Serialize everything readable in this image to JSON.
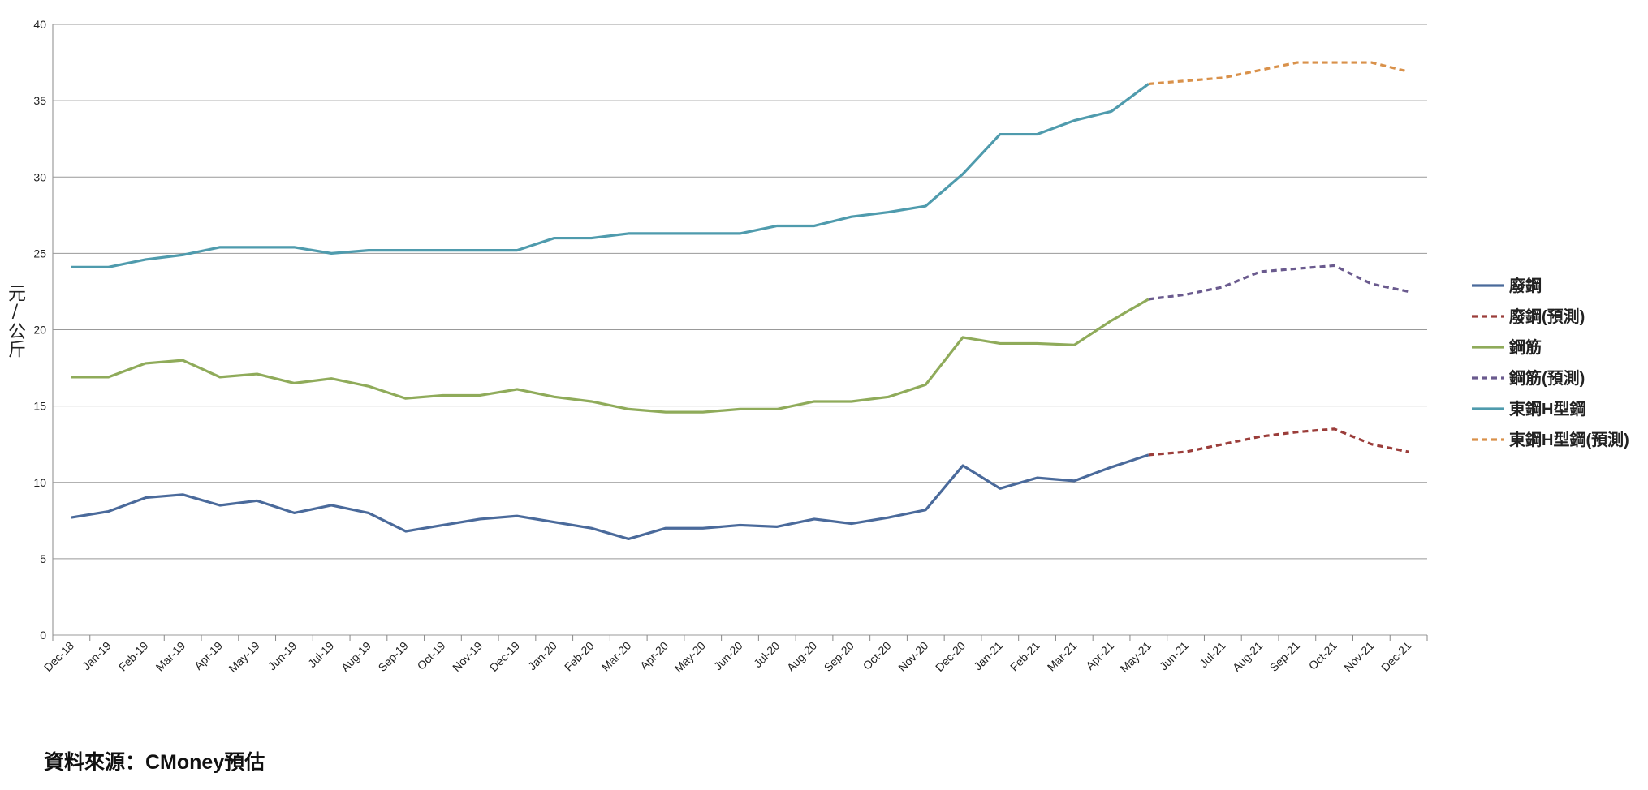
{
  "chart_data": {
    "type": "line",
    "y_label": "元/公斤",
    "source": "資料來源：CMoney預估",
    "categories": [
      "Dec-18",
      "Jan-19",
      "Feb-19",
      "Mar-19",
      "Apr-19",
      "May-19",
      "Jun-19",
      "Jul-19",
      "Aug-19",
      "Sep-19",
      "Oct-19",
      "Nov-19",
      "Dec-19",
      "Jan-20",
      "Feb-20",
      "Mar-20",
      "Apr-20",
      "May-20",
      "Jun-20",
      "Jul-20",
      "Aug-20",
      "Sep-20",
      "Oct-20",
      "Nov-20",
      "Dec-20",
      "Jan-21",
      "Feb-21",
      "Mar-21",
      "Apr-21",
      "May-21",
      "Jun-21",
      "Jul-21",
      "Aug-21",
      "Sep-21",
      "Oct-21",
      "Nov-21",
      "Dec-21"
    ],
    "series": [
      {
        "name": "廢鋼",
        "color": "#4a6a9b",
        "dashed": false,
        "values": [
          7.7,
          8.1,
          9.0,
          9.2,
          8.5,
          8.8,
          8.0,
          8.5,
          8.0,
          6.8,
          7.2,
          7.6,
          7.8,
          7.4,
          7.0,
          6.3,
          7.0,
          7.0,
          7.2,
          7.1,
          7.6,
          7.3,
          7.7,
          8.2,
          11.1,
          9.6,
          10.3,
          10.1,
          11.0,
          11.8,
          null,
          null,
          null,
          null,
          null,
          null,
          null
        ]
      },
      {
        "name": "廢鋼(預測)",
        "color": "#9b3d3a",
        "dashed": true,
        "values": [
          null,
          null,
          null,
          null,
          null,
          null,
          null,
          null,
          null,
          null,
          null,
          null,
          null,
          null,
          null,
          null,
          null,
          null,
          null,
          null,
          null,
          null,
          null,
          null,
          null,
          null,
          null,
          null,
          null,
          11.8,
          12.0,
          12.5,
          13.0,
          13.3,
          13.5,
          12.5,
          12.0
        ]
      },
      {
        "name": "鋼筋",
        "color": "#8fab5a",
        "dashed": false,
        "values": [
          16.9,
          16.9,
          17.8,
          18.0,
          16.9,
          17.1,
          16.5,
          16.8,
          16.3,
          15.5,
          15.7,
          15.7,
          16.1,
          15.6,
          15.3,
          14.8,
          14.6,
          14.6,
          14.8,
          14.8,
          15.3,
          15.3,
          15.6,
          16.4,
          19.5,
          19.1,
          19.1,
          19.0,
          20.6,
          22.0,
          null,
          null,
          null,
          null,
          null,
          null,
          null
        ]
      },
      {
        "name": "鋼筋(預測)",
        "color": "#6a5a8e",
        "dashed": true,
        "values": [
          null,
          null,
          null,
          null,
          null,
          null,
          null,
          null,
          null,
          null,
          null,
          null,
          null,
          null,
          null,
          null,
          null,
          null,
          null,
          null,
          null,
          null,
          null,
          null,
          null,
          null,
          null,
          null,
          null,
          22.0,
          22.3,
          22.8,
          23.8,
          24.0,
          24.2,
          23.0,
          22.5
        ]
      },
      {
        "name": "東鋼H型鋼",
        "color": "#4f9bad",
        "dashed": false,
        "values": [
          24.1,
          24.1,
          24.6,
          24.9,
          25.4,
          25.4,
          25.4,
          25.0,
          25.2,
          25.2,
          25.2,
          25.2,
          25.2,
          26.0,
          26.0,
          26.3,
          26.3,
          26.3,
          26.3,
          26.8,
          26.8,
          27.4,
          27.7,
          28.1,
          30.2,
          32.8,
          32.8,
          33.7,
          34.3,
          36.1,
          null,
          null,
          null,
          null,
          null,
          null,
          null
        ]
      },
      {
        "name": "東鋼H型鋼(預測)",
        "color": "#d9914a",
        "dashed": true,
        "values": [
          null,
          null,
          null,
          null,
          null,
          null,
          null,
          null,
          null,
          null,
          null,
          null,
          null,
          null,
          null,
          null,
          null,
          null,
          null,
          null,
          null,
          null,
          null,
          null,
          null,
          null,
          null,
          null,
          null,
          36.1,
          36.3,
          36.5,
          37.0,
          37.5,
          37.5,
          37.5,
          36.9
        ]
      }
    ],
    "ylim": [
      0,
      40
    ],
    "yticks": [
      0,
      5,
      10,
      15,
      20,
      25,
      30,
      35,
      40
    ],
    "grid": true,
    "legend": "right"
  }
}
